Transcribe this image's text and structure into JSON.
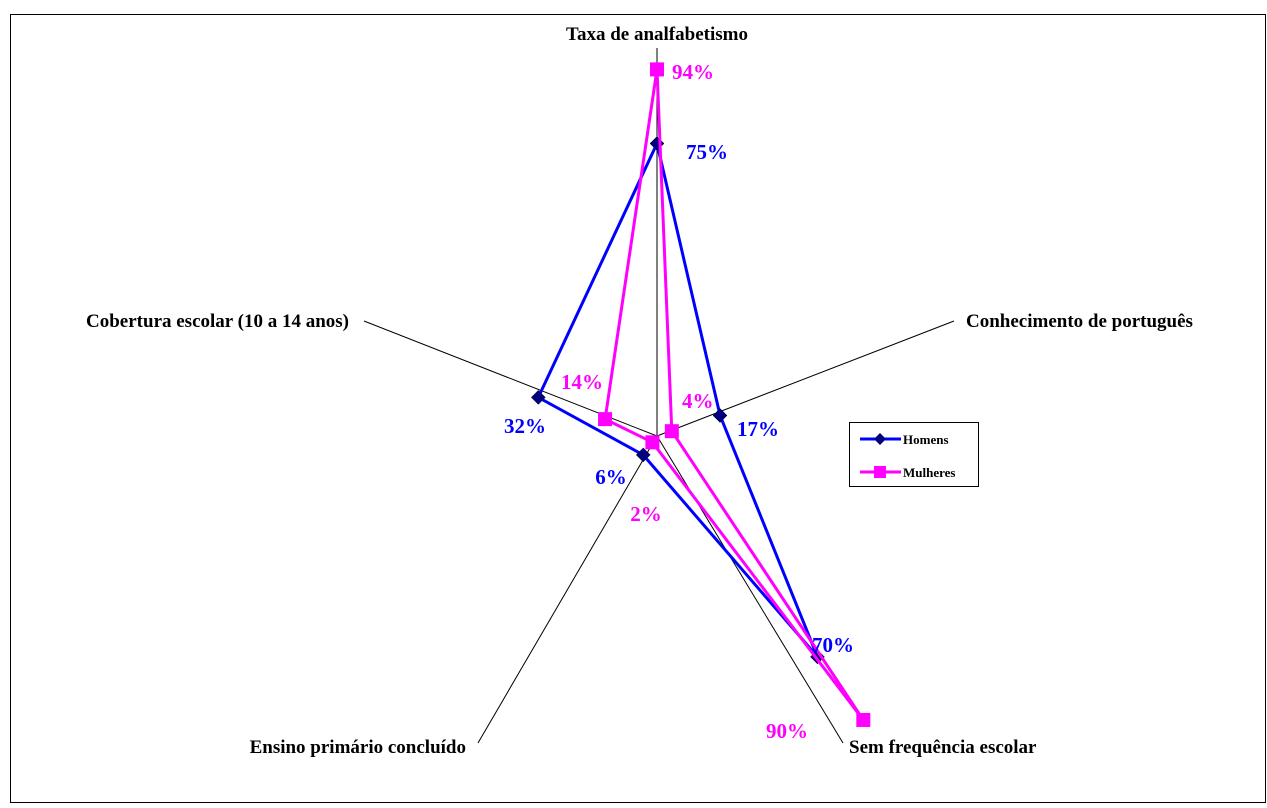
{
  "chart_data": {
    "type": "radar",
    "title": "",
    "axes": [
      "Taxa de analfabetismo",
      "Conhecimento de português",
      "Sem frequência escolar",
      "Ensino primário concluído",
      "Cobertura escolar (10 a 14 anos)"
    ],
    "range": [
      0,
      100
    ],
    "grid": false,
    "legend_position": "right",
    "series": [
      {
        "name": "Homens",
        "values": [
          75,
          17,
          70,
          6,
          32
        ],
        "labels": [
          "75%",
          "17%",
          "70%",
          "6%",
          "32%"
        ],
        "color": "#0000ff",
        "marker_color": "#000080",
        "marker": "diamond"
      },
      {
        "name": "Mulheres",
        "values": [
          94,
          4,
          90,
          2,
          14
        ],
        "labels": [
          "94%",
          "4%",
          "90%",
          "2%",
          "14%"
        ],
        "color": "#ff00ff",
        "marker_color": "#ff00ff",
        "marker": "square"
      }
    ]
  }
}
